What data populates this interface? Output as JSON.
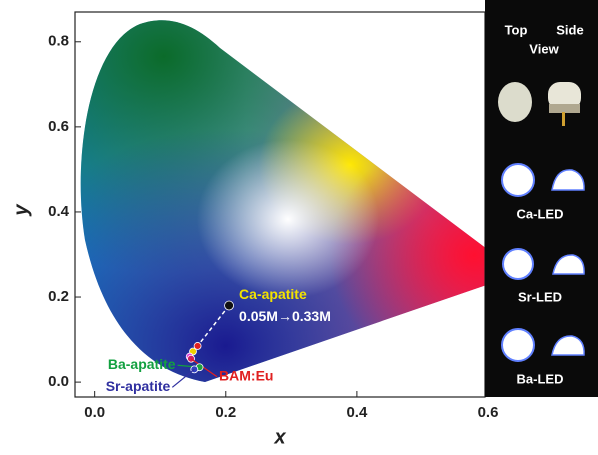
{
  "chart_data": {
    "type": "scatter",
    "xlabel": "x",
    "ylabel": "y",
    "xlim": [
      -0.03,
      0.6
    ],
    "ylim": [
      -0.035,
      0.87
    ],
    "xticks": [
      {
        "value": 0,
        "label": "0.0"
      },
      0.2,
      0.4,
      0.6
    ],
    "yticks": [
      {
        "value": 0,
        "label": "0.0"
      },
      0.2,
      0.4,
      0.6,
      0.8
    ],
    "series": [
      {
        "name": "Ca-apatite",
        "x": [
          0.205,
          0.157,
          0.15,
          0.145
        ],
        "y": [
          0.18,
          0.085,
          0.072,
          0.06
        ],
        "colors": [
          "#111111",
          "#e02020",
          "#f0d000",
          "#e040e0"
        ]
      },
      {
        "name": "BAM:Eu",
        "x": [
          0.147
        ],
        "y": [
          0.055
        ],
        "color": "#d02060"
      },
      {
        "name": "Ba-apatite",
        "x": [
          0.16
        ],
        "y": [
          0.035
        ],
        "color": "#20a040"
      },
      {
        "name": "Sr-apatite",
        "x": [
          0.152
        ],
        "y": [
          0.03
        ],
        "color": "#3040c0"
      }
    ],
    "annotation": "0.05M→0.33M"
  },
  "panel": {
    "top": "Top",
    "side": "Side",
    "view": "View",
    "leds": [
      "Ca-LED",
      "Sr-LED",
      "Ba-LED"
    ]
  }
}
